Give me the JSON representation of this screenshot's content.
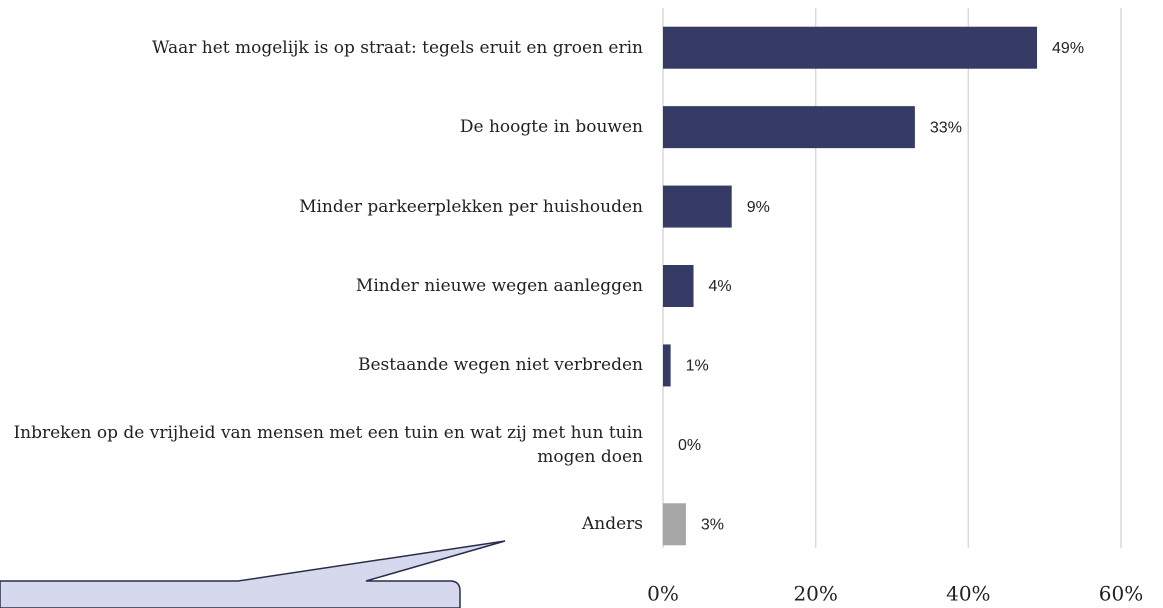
{
  "chart_data": {
    "type": "bar",
    "orientation": "horizontal",
    "categories": [
      "Waar het mogelijk is op straat: tegels eruit en groen erin",
      "De hoogte in bouwen",
      "Minder parkeerplekken per huishouden",
      "Minder nieuwe wegen aanleggen",
      "Bestaande wegen niet verbreden",
      "Inbreken op de vrijheid van mensen met een tuin en wat zij met hun tuin mogen doen",
      "Anders"
    ],
    "values": [
      49,
      33,
      9,
      4,
      1,
      0,
      3
    ],
    "value_labels": [
      "49%",
      "33%",
      "9%",
      "4%",
      "1%",
      "0%",
      "3%"
    ],
    "colors": [
      "#363b66",
      "#363b66",
      "#363b66",
      "#363b66",
      "#363b66",
      "#363b66",
      "#a6a6a6"
    ],
    "xlim": [
      0,
      60
    ],
    "xticks": [
      {
        "value": 0,
        "label": "0%"
      },
      {
        "value": 20,
        "label": "20%"
      },
      {
        "value": 40,
        "label": "40%"
      },
      {
        "value": 60,
        "label": "60%"
      }
    ],
    "grid": true
  }
}
